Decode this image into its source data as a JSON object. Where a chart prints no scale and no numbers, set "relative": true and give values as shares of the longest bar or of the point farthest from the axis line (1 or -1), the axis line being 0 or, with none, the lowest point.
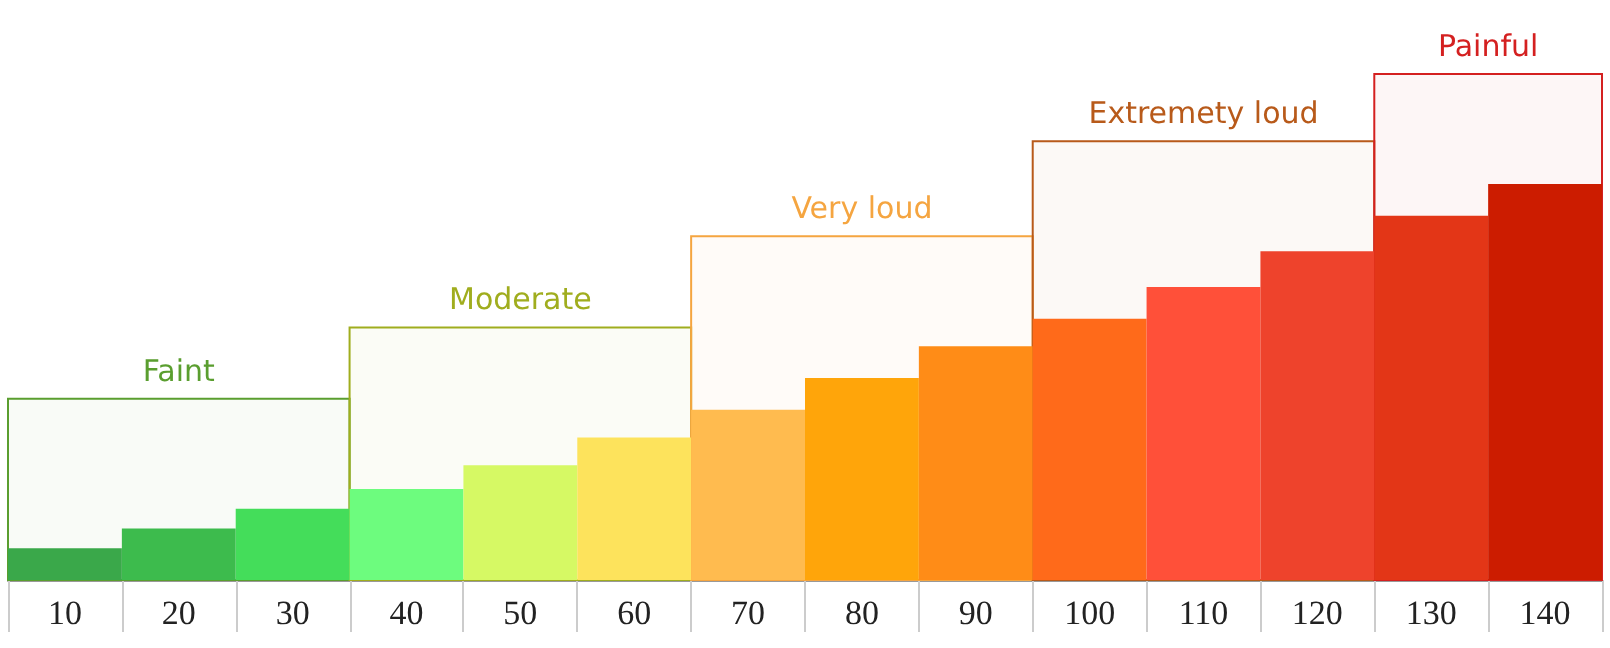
{
  "chart_data": {
    "type": "bar",
    "relative": true,
    "grid": false,
    "categories": [
      "10",
      "20",
      "30",
      "40",
      "50",
      "60",
      "70",
      "80",
      "90",
      "100",
      "110",
      "120",
      "130",
      "140"
    ],
    "values": [
      0.08,
      0.13,
      0.18,
      0.23,
      0.29,
      0.36,
      0.43,
      0.51,
      0.59,
      0.66,
      0.74,
      0.83,
      0.92,
      1
    ],
    "colors": [
      "#3aa84a",
      "#3dbb4d",
      "#44dd5a",
      "#6dfc7e",
      "#d6f964",
      "#fde35c",
      "#ffbb4f",
      "#ffa50a",
      "#ff8c17",
      "#ff6a1a",
      "#ff5039",
      "#ee432c",
      "#e33617",
      "#cc1c00"
    ],
    "bands": [
      {
        "axis": "x",
        "from": "10",
        "to": "30",
        "label": "Faint",
        "color": "#5a9e2f"
      },
      {
        "axis": "x",
        "from": "40",
        "to": "60",
        "label": "Moderate",
        "color": "#a0ad1e"
      },
      {
        "axis": "x",
        "from": "70",
        "to": "90",
        "label": "Very loud",
        "color": "#f5a540"
      },
      {
        "axis": "x",
        "from": "100",
        "to": "120",
        "label": "Extremety loud",
        "color": "#b85a1a"
      },
      {
        "axis": "x",
        "from": "130",
        "to": "140",
        "label": "Painful",
        "color": "#d42020"
      }
    ]
  }
}
